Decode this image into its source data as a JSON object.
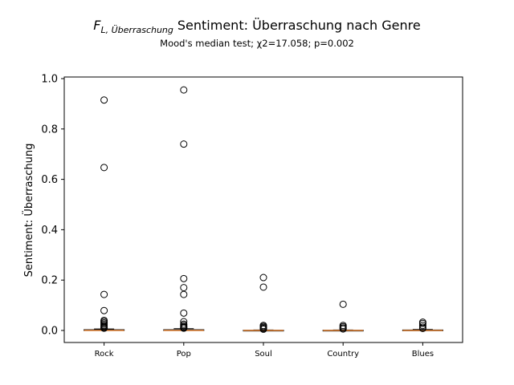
{
  "chart_data": {
    "type": "box",
    "title_symbol": "F",
    "title_symbol_sub": "L, Überraschung",
    "title_text": "Sentiment: Überraschung nach Genre",
    "subtitle": "Mood's median test; χ2=17.058; p=0.002",
    "xlabel": "",
    "ylabel": "Sentiment: Überraschung",
    "ylim": [
      -0.045,
      1.0
    ],
    "yticks": [
      "0.0",
      "0.2",
      "0.4",
      "0.6",
      "0.8",
      "1.0"
    ],
    "ytick_values": [
      0.0,
      0.2,
      0.4,
      0.6,
      0.8,
      1.0
    ],
    "categories": [
      "Rock",
      "Pop",
      "Soul",
      "Country",
      "Blues"
    ],
    "boxes": [
      {
        "category": "Rock",
        "q1": 0.0,
        "median": 0.0,
        "q3": 0.003,
        "whisker_low": 0.0,
        "whisker_high": 0.006,
        "outliers": [
          0.915,
          0.647,
          0.143,
          0.079,
          0.04,
          0.035,
          0.03,
          0.025,
          0.02,
          0.016,
          0.012,
          0.009
        ]
      },
      {
        "category": "Pop",
        "q1": 0.0,
        "median": 0.0,
        "q3": 0.003,
        "whisker_low": 0.0,
        "whisker_high": 0.007,
        "outliers": [
          0.955,
          0.74,
          0.206,
          0.17,
          0.143,
          0.069,
          0.035,
          0.025,
          0.02,
          0.015,
          0.012,
          0.009
        ]
      },
      {
        "category": "Soul",
        "q1": 0.0,
        "median": 0.0,
        "q3": 0.001,
        "whisker_low": 0.0,
        "whisker_high": 0.002,
        "outliers": [
          0.21,
          0.172,
          0.02,
          0.016,
          0.012,
          0.008,
          0.005
        ]
      },
      {
        "category": "Country",
        "q1": 0.0,
        "median": 0.0,
        "q3": 0.001,
        "whisker_low": 0.0,
        "whisker_high": 0.002,
        "outliers": [
          0.104,
          0.02,
          0.015,
          0.01,
          0.006
        ]
      },
      {
        "category": "Blues",
        "q1": 0.0,
        "median": 0.0,
        "q3": 0.002,
        "whisker_low": 0.0,
        "whisker_high": 0.004,
        "outliers": [
          0.033,
          0.028,
          0.02,
          0.013,
          0.008
        ]
      }
    ],
    "colors": {
      "box": "#000000",
      "median": "#e8883a",
      "outlier_edge": "#000000"
    },
    "grid": false,
    "legend": "none"
  }
}
